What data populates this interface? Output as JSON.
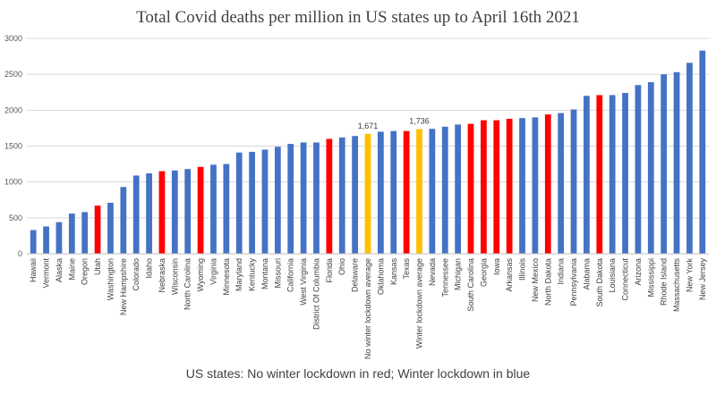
{
  "chart_data": {
    "type": "bar",
    "title": "Total Covid deaths per million in US states up to April 16th 2021",
    "xlabel": "",
    "ylabel": "",
    "ylim": [
      0,
      3000
    ],
    "yticks": [
      0,
      500,
      1000,
      1500,
      2000,
      2500,
      3000
    ],
    "grid": true,
    "footer": "US states: No winter lockdown in red; Winter lockdown in blue",
    "colors": {
      "lockdown": "#4472c4",
      "no_lockdown": "#ff0000",
      "average": "#ffc000",
      "grid": "#d9d9d9",
      "text": "#404040"
    },
    "bars": [
      {
        "label": "Hawaii",
        "value": 330,
        "group": "lockdown"
      },
      {
        "label": "Vermont",
        "value": 380,
        "group": "lockdown"
      },
      {
        "label": "Alaska",
        "value": 440,
        "group": "lockdown"
      },
      {
        "label": "Maine",
        "value": 560,
        "group": "lockdown"
      },
      {
        "label": "Oregon",
        "value": 580,
        "group": "lockdown"
      },
      {
        "label": "Utah",
        "value": 670,
        "group": "no_lockdown"
      },
      {
        "label": "Washington",
        "value": 710,
        "group": "lockdown"
      },
      {
        "label": "New Hampshire",
        "value": 930,
        "group": "lockdown"
      },
      {
        "label": "Colorado",
        "value": 1090,
        "group": "lockdown"
      },
      {
        "label": "Idaho",
        "value": 1120,
        "group": "lockdown"
      },
      {
        "label": "Nebraska",
        "value": 1150,
        "group": "no_lockdown"
      },
      {
        "label": "Wisconsin",
        "value": 1160,
        "group": "lockdown"
      },
      {
        "label": "North Carolina",
        "value": 1180,
        "group": "lockdown"
      },
      {
        "label": "Wyoming",
        "value": 1210,
        "group": "no_lockdown"
      },
      {
        "label": "Virginia",
        "value": 1240,
        "group": "lockdown"
      },
      {
        "label": "Minnesota",
        "value": 1250,
        "group": "lockdown"
      },
      {
        "label": "Maryland",
        "value": 1410,
        "group": "lockdown"
      },
      {
        "label": "Kentucky",
        "value": 1420,
        "group": "lockdown"
      },
      {
        "label": "Montana",
        "value": 1450,
        "group": "lockdown"
      },
      {
        "label": "Missouri",
        "value": 1490,
        "group": "lockdown"
      },
      {
        "label": "California",
        "value": 1530,
        "group": "lockdown"
      },
      {
        "label": "West Virginia",
        "value": 1550,
        "group": "lockdown"
      },
      {
        "label": "District Of Columbia",
        "value": 1550,
        "group": "lockdown"
      },
      {
        "label": "Florida",
        "value": 1600,
        "group": "no_lockdown"
      },
      {
        "label": "Ohio",
        "value": 1620,
        "group": "lockdown"
      },
      {
        "label": "Delaware",
        "value": 1640,
        "group": "lockdown"
      },
      {
        "label": "No winter lockdown average",
        "value": 1671,
        "group": "average",
        "data_label": "1,671"
      },
      {
        "label": "Oklahoma",
        "value": 1700,
        "group": "lockdown"
      },
      {
        "label": "Kansas",
        "value": 1710,
        "group": "lockdown"
      },
      {
        "label": "Texas",
        "value": 1710,
        "group": "no_lockdown"
      },
      {
        "label": "Winter lockdown average",
        "value": 1736,
        "group": "average",
        "data_label": "1,736"
      },
      {
        "label": "Nevada",
        "value": 1740,
        "group": "lockdown"
      },
      {
        "label": "Tennessee",
        "value": 1770,
        "group": "lockdown"
      },
      {
        "label": "Michigan",
        "value": 1800,
        "group": "lockdown"
      },
      {
        "label": "South Carolina",
        "value": 1810,
        "group": "no_lockdown"
      },
      {
        "label": "Georgia",
        "value": 1860,
        "group": "no_lockdown"
      },
      {
        "label": "Iowa",
        "value": 1860,
        "group": "no_lockdown"
      },
      {
        "label": "Arkansas",
        "value": 1880,
        "group": "no_lockdown"
      },
      {
        "label": "Illinois",
        "value": 1890,
        "group": "lockdown"
      },
      {
        "label": "New Mexico",
        "value": 1900,
        "group": "lockdown"
      },
      {
        "label": "North Dakota",
        "value": 1940,
        "group": "no_lockdown"
      },
      {
        "label": "Indiana",
        "value": 1960,
        "group": "lockdown"
      },
      {
        "label": "Pennsylvania",
        "value": 2010,
        "group": "lockdown"
      },
      {
        "label": "Alabama",
        "value": 2200,
        "group": "lockdown"
      },
      {
        "label": "South Dakota",
        "value": 2210,
        "group": "no_lockdown"
      },
      {
        "label": "Louisiana",
        "value": 2210,
        "group": "lockdown"
      },
      {
        "label": "Connecticut",
        "value": 2240,
        "group": "lockdown"
      },
      {
        "label": "Arizona",
        "value": 2350,
        "group": "lockdown"
      },
      {
        "label": "Mississippi",
        "value": 2390,
        "group": "lockdown"
      },
      {
        "label": "Rhode Island",
        "value": 2500,
        "group": "lockdown"
      },
      {
        "label": "Massachusetts",
        "value": 2530,
        "group": "lockdown"
      },
      {
        "label": "New York",
        "value": 2660,
        "group": "lockdown"
      },
      {
        "label": "New Jersey",
        "value": 2830,
        "group": "lockdown"
      }
    ]
  }
}
